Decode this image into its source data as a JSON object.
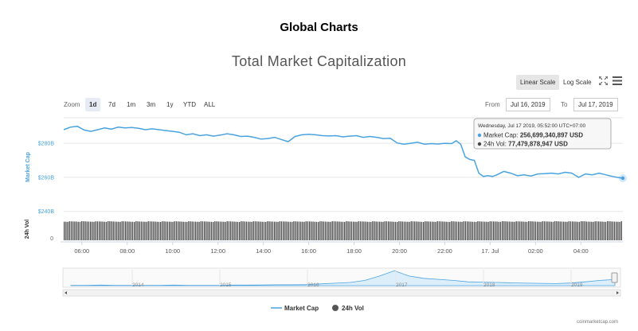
{
  "page": {
    "title": "Global Charts"
  },
  "chart_data": {
    "type": "line",
    "title": "Total Market Capitalization",
    "controls": {
      "scale_linear": "Linear Scale",
      "scale_log": "Log Scale",
      "zoom_label": "Zoom",
      "zoom_options": [
        "1d",
        "7d",
        "1m",
        "3m",
        "1y",
        "YTD",
        "ALL"
      ],
      "zoom_active": "1d",
      "from_label": "From",
      "from_value": "Jul 16, 2019",
      "to_label": "To",
      "to_value": "Jul 17, 2019"
    },
    "ylabel": "Market Cap",
    "yticks": [
      "$280B",
      "$260B",
      "$240B"
    ],
    "ytick_values": [
      280,
      260,
      240
    ],
    "ylim": [
      238,
      295
    ],
    "vol_label": "24h Vol",
    "vol_ytick": "0",
    "xticks": [
      "06:00",
      "08:00",
      "10:00",
      "12:00",
      "14:00",
      "16:00",
      "18:00",
      "20:00",
      "22:00",
      "17. Jul",
      "02:00",
      "04:00"
    ],
    "xtick_hours": [
      6,
      8,
      10,
      12,
      14,
      16,
      18,
      20,
      22,
      24,
      26,
      28
    ],
    "xlim_hours": [
      5.2,
      29.85
    ],
    "series": [
      {
        "name": "Market Cap",
        "unit": "billion USD",
        "x_hours": [
          5.2,
          5.5,
          5.8,
          6.1,
          6.4,
          6.7,
          7.0,
          7.3,
          7.6,
          7.9,
          8.2,
          8.5,
          8.8,
          9.1,
          9.4,
          9.7,
          10.0,
          10.3,
          10.6,
          10.9,
          11.2,
          11.5,
          11.8,
          12.1,
          12.4,
          12.7,
          13.0,
          13.3,
          13.6,
          13.9,
          14.2,
          14.5,
          14.8,
          15.1,
          15.4,
          15.7,
          16.0,
          16.3,
          16.6,
          16.9,
          17.2,
          17.5,
          17.8,
          18.1,
          18.4,
          18.7,
          19.0,
          19.3,
          19.6,
          19.9,
          20.2,
          20.5,
          20.8,
          21.1,
          21.4,
          21.7,
          22.0,
          22.3,
          22.5,
          22.7,
          22.9,
          23.1,
          23.3,
          23.5,
          23.7,
          23.9,
          24.1,
          24.3,
          24.6,
          24.9,
          25.2,
          25.5,
          25.8,
          26.1,
          26.4,
          26.7,
          27.0,
          27.3,
          27.6,
          27.9,
          28.2,
          28.5,
          28.8,
          29.1,
          29.4,
          29.6,
          29.85
        ],
        "values": [
          288.0,
          289.5,
          290.0,
          287.8,
          287.0,
          288.0,
          289.0,
          288.3,
          289.5,
          289.0,
          289.3,
          288.8,
          288.0,
          288.5,
          288.0,
          287.5,
          287.0,
          286.5,
          285.0,
          285.6,
          284.5,
          285.0,
          284.2,
          284.8,
          285.6,
          285.0,
          284.0,
          284.2,
          283.5,
          282.5,
          282.8,
          283.5,
          282.2,
          281.0,
          284.0,
          285.0,
          285.3,
          285.0,
          284.5,
          284.3,
          284.5,
          283.8,
          284.2,
          284.5,
          283.5,
          284.0,
          283.5,
          282.8,
          283.0,
          280.2,
          279.5,
          280.0,
          280.6,
          279.5,
          279.8,
          279.6,
          280.0,
          279.8,
          281.5,
          279.5,
          272.0,
          270.5,
          270.0,
          262.5,
          260.5,
          261.0,
          260.5,
          261.5,
          263.5,
          262.5,
          261.0,
          261.5,
          260.8,
          262.0,
          262.2,
          262.5,
          262.0,
          263.0,
          262.5,
          260.0,
          262.0,
          261.5,
          262.5,
          261.5,
          260.5,
          260.0,
          259.5
        ]
      },
      {
        "name": "24h Vol",
        "unit": "billion USD",
        "approx_level": 77.5
      }
    ],
    "tooltip": {
      "time": "Wednesday, Jul 17 2019, 05:52:00 UTC+07:00",
      "mcap_label": "Market Cap:",
      "mcap_value": "256,699,340,897 USD",
      "vol_label": "24h Vol:",
      "vol_value": "77,479,878,947 USD"
    },
    "navigator": {
      "years": [
        "2014",
        "2015",
        "2016",
        "2017",
        "2018",
        "2019"
      ]
    },
    "legend": [
      "Market Cap",
      "24h Vol"
    ],
    "credit": "coinmarketcap.com",
    "colors": {
      "line": "#4aa3df",
      "volume": "#444444",
      "navigator_fill": "#dceefa",
      "grid": "#e6e6e6"
    }
  }
}
